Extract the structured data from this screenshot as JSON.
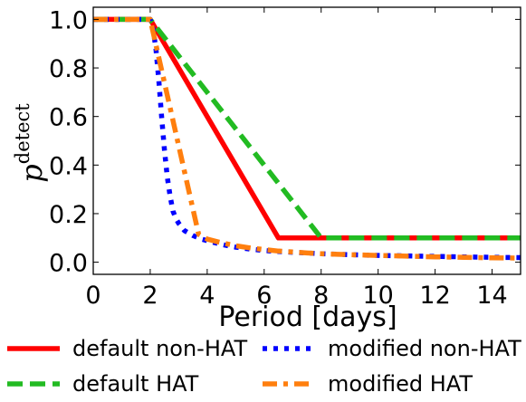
{
  "chart_data": {
    "type": "line",
    "xlabel": "Period [days]",
    "ylabel": {
      "base": "p",
      "superscript": "detect"
    },
    "xlim": [
      0,
      15
    ],
    "ylim": [
      -0.05,
      1.05
    ],
    "xticks": [
      0,
      2,
      4,
      6,
      8,
      10,
      12,
      14
    ],
    "yticks": [
      0.0,
      0.2,
      0.4,
      0.6,
      0.8,
      1.0
    ],
    "ytick_labels": [
      "0.0",
      "0.2",
      "0.4",
      "0.6",
      "0.8",
      "1.0"
    ],
    "grid": false,
    "legend_placement": "below",
    "series": [
      {
        "name": "default non-HAT",
        "color": "#ff0000",
        "style": "solid",
        "x": [
          0,
          2,
          6.5,
          15
        ],
        "y": [
          1.0,
          1.0,
          0.1,
          0.1
        ]
      },
      {
        "name": "default HAT",
        "color": "#22bb22",
        "style": "dashed",
        "x": [
          0,
          2,
          8,
          15
        ],
        "y": [
          1.0,
          1.0,
          0.1,
          0.1
        ]
      },
      {
        "name": "modified non-HAT",
        "color": "#0000ff",
        "style": "dotted",
        "x": [
          0,
          2.0,
          2.1,
          2.2,
          2.3,
          2.4,
          2.5,
          2.6,
          2.7,
          2.8,
          2.9,
          3.0,
          3.2,
          3.5,
          3.8,
          4.2,
          4.6,
          5.0,
          5.5,
          6.0,
          6.5,
          7.0,
          7.5,
          8.0,
          9.0,
          10.0,
          11.0,
          12.0,
          13.0,
          14.0,
          15.0
        ],
        "y": [
          1.0,
          1.0,
          0.96,
          0.88,
          0.75,
          0.6,
          0.46,
          0.35,
          0.27,
          0.21,
          0.18,
          0.16,
          0.13,
          0.11,
          0.095,
          0.082,
          0.071,
          0.062,
          0.054,
          0.048,
          0.044,
          0.041,
          0.038,
          0.035,
          0.031,
          0.028,
          0.026,
          0.024,
          0.022,
          0.02,
          0.019
        ]
      },
      {
        "name": "modified HAT",
        "color": "#ff7f0e",
        "style": "dashdot",
        "x": [
          0,
          2.0,
          3.7,
          4.0,
          4.5,
          5.0,
          5.5,
          6.0,
          6.5,
          7.0,
          7.5,
          8.0,
          9.0,
          10.0,
          11.0,
          12.0,
          13.0,
          14.0,
          15.0
        ],
        "y": [
          1.0,
          1.0,
          0.115,
          0.095,
          0.08,
          0.068,
          0.059,
          0.052,
          0.046,
          0.042,
          0.038,
          0.035,
          0.031,
          0.028,
          0.025,
          0.022,
          0.02,
          0.018,
          0.017
        ]
      }
    ]
  }
}
